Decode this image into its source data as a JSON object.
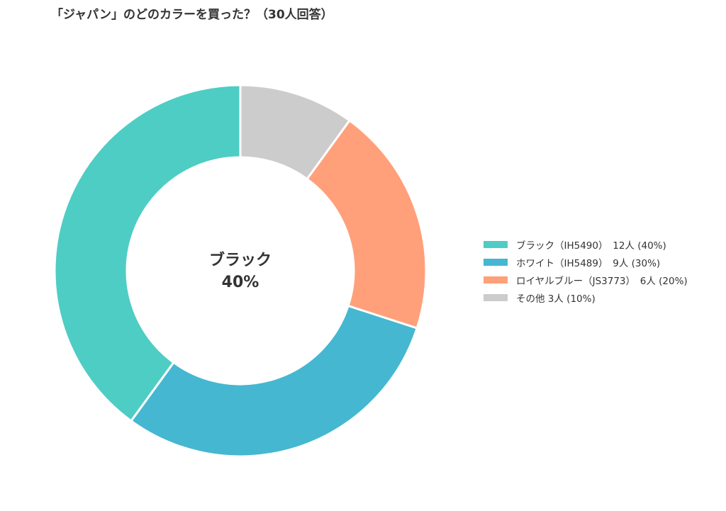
{
  "chart_data": {
    "type": "pie",
    "variant": "donut",
    "title": "「ジャパン」のどのカラーを買った？（30人回答）",
    "center_label": {
      "name": "ブラック",
      "value": "40%"
    },
    "slices": [
      {
        "name": "ブラック（IH5490）",
        "count": 12,
        "percent": 40,
        "legend_label": "ブラック（IH5490）　12人 (40%)",
        "color": "#4ECDC4"
      },
      {
        "name": "ホワイト（IH5489）",
        "count": 9,
        "percent": 30,
        "legend_label": "ホワイト（IH5489）　9人 (30%)",
        "color": "#45B7D1"
      },
      {
        "name": "ロイヤルブルー（JS3773）",
        "count": 6,
        "percent": 20,
        "legend_label": "ロイヤルブルー（JS3773）　6人 (20%)",
        "color": "#FFA07A"
      },
      {
        "name": "その他",
        "count": 3,
        "percent": 10,
        "legend_label": "その他  3人 (10%)",
        "color": "#CCCCCC"
      }
    ],
    "legend_position": "right",
    "start_angle": "top",
    "direction": "counterclockwise"
  }
}
